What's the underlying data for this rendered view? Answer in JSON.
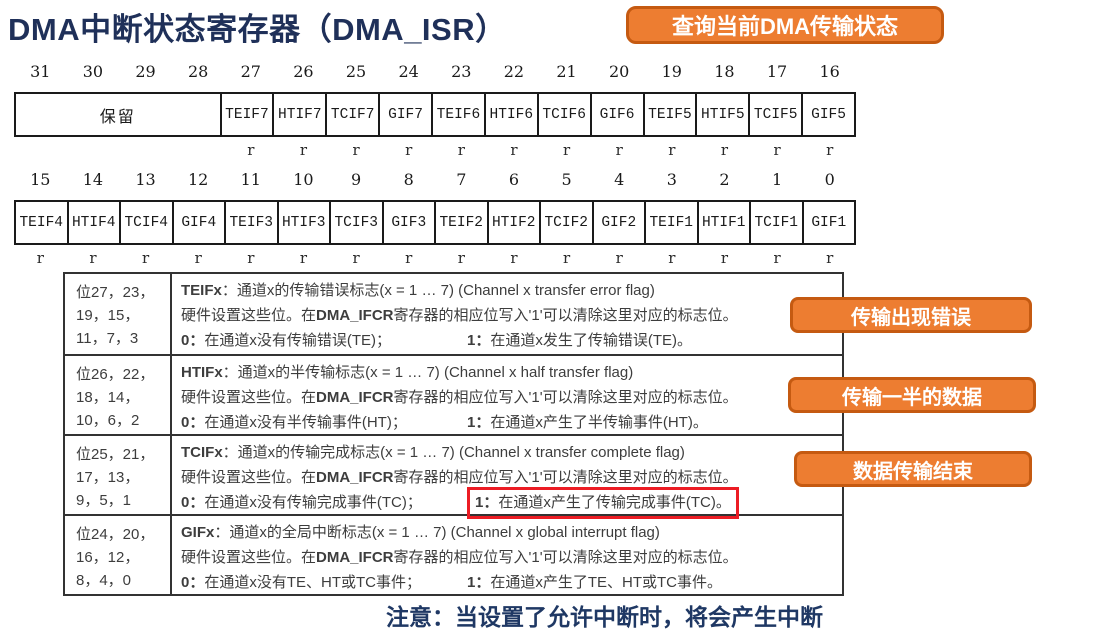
{
  "page": {
    "title": "DMA中断状态寄存器（DMA_ISR）",
    "title_badge": "查询当前DMA传输状态",
    "footer_note": "注意：当设置了允许中断时，将会产生中断"
  },
  "register": {
    "banks": [
      {
        "name": "high-word",
        "bits": [
          "31",
          "30",
          "29",
          "28",
          "27",
          "26",
          "25",
          "24",
          "23",
          "22",
          "21",
          "20",
          "19",
          "18",
          "17",
          "16"
        ],
        "cells": [
          {
            "label": "保留",
            "span": 4,
            "access": ""
          },
          {
            "label": "TEIF7",
            "span": 1,
            "access": "r"
          },
          {
            "label": "HTIF7",
            "span": 1,
            "access": "r"
          },
          {
            "label": "TCIF7",
            "span": 1,
            "access": "r"
          },
          {
            "label": "GIF7",
            "span": 1,
            "access": "r"
          },
          {
            "label": "TEIF6",
            "span": 1,
            "access": "r"
          },
          {
            "label": "HTIF6",
            "span": 1,
            "access": "r"
          },
          {
            "label": "TCIF6",
            "span": 1,
            "access": "r"
          },
          {
            "label": "GIF6",
            "span": 1,
            "access": "r"
          },
          {
            "label": "TEIF5",
            "span": 1,
            "access": "r"
          },
          {
            "label": "HTIF5",
            "span": 1,
            "access": "r"
          },
          {
            "label": "TCIF5",
            "span": 1,
            "access": "r"
          },
          {
            "label": "GIF5",
            "span": 1,
            "access": "r"
          }
        ]
      },
      {
        "name": "low-word",
        "bits": [
          "15",
          "14",
          "13",
          "12",
          "11",
          "10",
          "9",
          "8",
          "7",
          "6",
          "5",
          "4",
          "3",
          "2",
          "1",
          "0"
        ],
        "cells": [
          {
            "label": "TEIF4",
            "span": 1,
            "access": "r"
          },
          {
            "label": "HTIF4",
            "span": 1,
            "access": "r"
          },
          {
            "label": "TCIF4",
            "span": 1,
            "access": "r"
          },
          {
            "label": "GIF4",
            "span": 1,
            "access": "r"
          },
          {
            "label": "TEIF3",
            "span": 1,
            "access": "r"
          },
          {
            "label": "HTIF3",
            "span": 1,
            "access": "r"
          },
          {
            "label": "TCIF3",
            "span": 1,
            "access": "r"
          },
          {
            "label": "GIF3",
            "span": 1,
            "access": "r"
          },
          {
            "label": "TEIF2",
            "span": 1,
            "access": "r"
          },
          {
            "label": "HTIF2",
            "span": 1,
            "access": "r"
          },
          {
            "label": "TCIF2",
            "span": 1,
            "access": "r"
          },
          {
            "label": "GIF2",
            "span": 1,
            "access": "r"
          },
          {
            "label": "TEIF1",
            "span": 1,
            "access": "r"
          },
          {
            "label": "HTIF1",
            "span": 1,
            "access": "r"
          },
          {
            "label": "TCIF1",
            "span": 1,
            "access": "r"
          },
          {
            "label": "GIF1",
            "span": 1,
            "access": "r"
          }
        ]
      }
    ]
  },
  "desc_table": {
    "rows": [
      {
        "bits": [
          "位27，23，",
          "19，15，",
          "11，7，3"
        ],
        "flag": "TEIFx",
        "title_rest": "：通道x的传输错误标志(x = 1 … 7) (Channel x transfer error flag)",
        "line2_pre": "硬件设置这些位。在",
        "line2_strong": "DMA_IFCR",
        "line2_post": "寄存器的相应位写入'1'可以清除这里对应的标志位。",
        "zero_text": "0：在通道x没有传输错误(TE)；",
        "one_text": "1：在通道x发生了传输错误(TE)。",
        "one_highlight": false
      },
      {
        "bits": [
          "位26，22，",
          "18，14，",
          "10，6，2"
        ],
        "flag": "HTIFx",
        "title_rest": "：通道x的半传输标志(x = 1 … 7) (Channel x half transfer flag)",
        "line2_pre": "硬件设置这些位。在",
        "line2_strong": "DMA_IFCR",
        "line2_post": "寄存器的相应位写入'1'可以清除这里对应的标志位。",
        "zero_text": "0：在通道x没有半传输事件(HT)；",
        "one_text": "1：在通道x产生了半传输事件(HT)。",
        "one_highlight": false
      },
      {
        "bits": [
          "位25，21，",
          "17，13，",
          "9，5，1"
        ],
        "flag": "TCIFx",
        "title_rest": "：通道x的传输完成标志(x = 1 … 7) (Channel x transfer complete flag)",
        "line2_pre": "硬件设置这些位。在",
        "line2_strong": "DMA_IFCR",
        "line2_post": "寄存器的相应位写入'1'可以清除这里对应的标志位。",
        "zero_text": "0：在通道x没有传输完成事件(TC)；",
        "one_text": "1：在通道x产生了传输完成事件(TC)。",
        "one_highlight": true
      },
      {
        "bits": [
          "位24，20，",
          "16，12，",
          "8，4，0"
        ],
        "flag": "GIFx",
        "title_rest": "：通道x的全局中断标志(x = 1 … 7) (Channel x global interrupt flag)",
        "line2_pre": "硬件设置这些位。在",
        "line2_strong": "DMA_IFCR",
        "line2_post": "寄存器的相应位写入'1'可以清除这里对应的标志位。",
        "zero_text": "0：在通道x没有TE、HT或TC事件；",
        "one_text": "1：在通道x产生了TE、HT或TC事件。",
        "one_highlight": false
      }
    ]
  },
  "side_badges": [
    {
      "label": "传输出现错误"
    },
    {
      "label": "传输一半的数据"
    },
    {
      "label": "数据传输结束"
    }
  ],
  "colors": {
    "title_navy": "#1F3059",
    "note_navy": "#1F3864",
    "badge_orange": "#ED7D31",
    "badge_border": "#C55A11",
    "highlight_red": "#EC1C24"
  }
}
